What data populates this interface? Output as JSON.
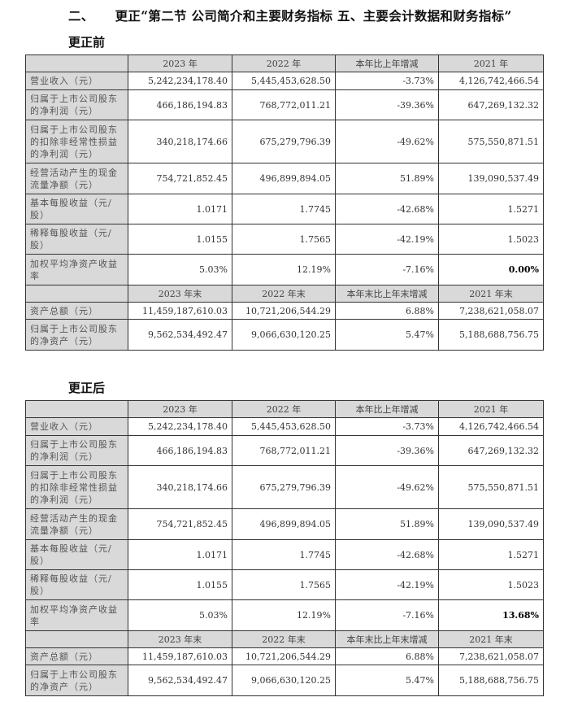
{
  "heading": {
    "number": "二、",
    "text": "更正“第二节 公司简介和主要财务指标 五、主要会计数据和财务指标”"
  },
  "tables": [
    {
      "title": "更正前",
      "header1": [
        "",
        "2023 年",
        "2022 年",
        "本年比上年增减",
        "2021 年"
      ],
      "rows1": [
        [
          "营业收入（元）",
          "5,242,234,178.40",
          "5,445,453,628.50",
          "-3.73%",
          "4,126,742,466.54"
        ],
        [
          "归属于上市公司股东的净利润（元）",
          "466,186,194.83",
          "768,772,011.21",
          "-39.36%",
          "647,269,132.32"
        ],
        [
          "归属于上市公司股东的扣除非经常性损益的净利润（元）",
          "340,218,174.66",
          "675,279,796.39",
          "-49.62%",
          "575,550,871.51"
        ],
        [
          "经营活动产生的现金流量净额（元）",
          "754,721,852.45",
          "496,899,894.05",
          "51.89%",
          "139,090,537.49"
        ],
        [
          "基本每股收益（元/股）",
          "1.0171",
          "1.7745",
          "-42.68%",
          "1.5271"
        ],
        [
          "稀释每股收益（元/股）",
          "1.0155",
          "1.7565",
          "-42.19%",
          "1.5023"
        ],
        [
          "加权平均净资产收益率",
          "5.03%",
          "12.19%",
          "-7.16%",
          "0.00%"
        ]
      ],
      "header2": [
        "",
        "2023 年末",
        "2022 年末",
        "本年末比上年末增减",
        "2021 年末"
      ],
      "rows2": [
        [
          "资产总额（元）",
          "11,459,187,610.03",
          "10,721,206,544.29",
          "6.88%",
          "7,238,621,058.07"
        ],
        [
          "归属于上市公司股东的净资产（元）",
          "9,562,534,492.47",
          "9,066,630,120.25",
          "5.47%",
          "5,188,688,756.75"
        ]
      ]
    },
    {
      "title": "更正后",
      "header1": [
        "",
        "2023 年",
        "2022 年",
        "本年比上年增减",
        "2021 年"
      ],
      "rows1": [
        [
          "营业收入（元）",
          "5,242,234,178.40",
          "5,445,453,628.50",
          "-3.73%",
          "4,126,742,466.54"
        ],
        [
          "归属于上市公司股东的净利润（元）",
          "466,186,194.83",
          "768,772,011.21",
          "-39.36%",
          "647,269,132.32"
        ],
        [
          "归属于上市公司股东的扣除非经常性损益的净利润（元）",
          "340,218,174.66",
          "675,279,796.39",
          "-49.62%",
          "575,550,871.51"
        ],
        [
          "经营活动产生的现金流量净额（元）",
          "754,721,852.45",
          "496,899,894.05",
          "51.89%",
          "139,090,537.49"
        ],
        [
          "基本每股收益（元/股）",
          "1.0171",
          "1.7745",
          "-42.68%",
          "1.5271"
        ],
        [
          "稀释每股收益（元/股）",
          "1.0155",
          "1.7565",
          "-42.19%",
          "1.5023"
        ],
        [
          "加权平均净资产收益率",
          "5.03%",
          "12.19%",
          "-7.16%",
          "13.68%"
        ]
      ],
      "header2": [
        "",
        "2023 年末",
        "2022 年末",
        "本年末比上年末增减",
        "2021 年末"
      ],
      "rows2": [
        [
          "资产总额（元）",
          "11,459,187,610.03",
          "10,721,206,544.29",
          "6.88%",
          "7,238,621,058.07"
        ],
        [
          "归属于上市公司股东的净资产（元）",
          "9,562,534,492.47",
          "9,066,630,120.25",
          "5.47%",
          "5,188,688,756.75"
        ]
      ]
    }
  ]
}
